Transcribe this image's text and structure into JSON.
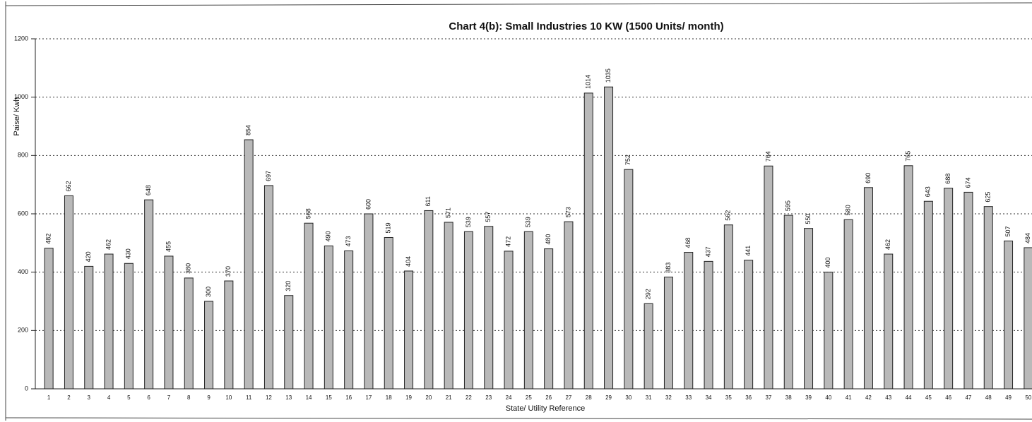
{
  "chart_data": {
    "type": "bar",
    "title": "Chart 4(b): Small Industries 10 KW (1500 Units/ month)",
    "x_label": "State/ Utility Reference",
    "y_label": "Paise/ Kwh",
    "categories": [
      "1",
      "2",
      "3",
      "4",
      "5",
      "6",
      "7",
      "8",
      "9",
      "10",
      "11",
      "12",
      "13",
      "14",
      "15",
      "16",
      "17",
      "18",
      "19",
      "20",
      "21",
      "22",
      "23",
      "24",
      "25",
      "26",
      "27",
      "28",
      "29",
      "30",
      "31",
      "32",
      "33",
      "34",
      "35",
      "36",
      "37",
      "38",
      "39",
      "40",
      "41",
      "42",
      "43",
      "44",
      "45",
      "46",
      "47",
      "48",
      "49",
      "50"
    ],
    "values": [
      482,
      662,
      420,
      462,
      430,
      648,
      455,
      380,
      300,
      370,
      854,
      697,
      320,
      568,
      490,
      473,
      600,
      519,
      404,
      611,
      571,
      539,
      557,
      472,
      539,
      480,
      573,
      1014,
      1035,
      752,
      292,
      383,
      468,
      437,
      562,
      441,
      764,
      595,
      550,
      400,
      580,
      690,
      462,
      765,
      643,
      688,
      674,
      625,
      507,
      484
    ],
    "color": "#b9b9b9",
    "ylim": [
      0,
      1200
    ],
    "yticks": [
      0,
      200,
      400,
      600,
      800,
      1000,
      1200
    ],
    "grid": true
  }
}
